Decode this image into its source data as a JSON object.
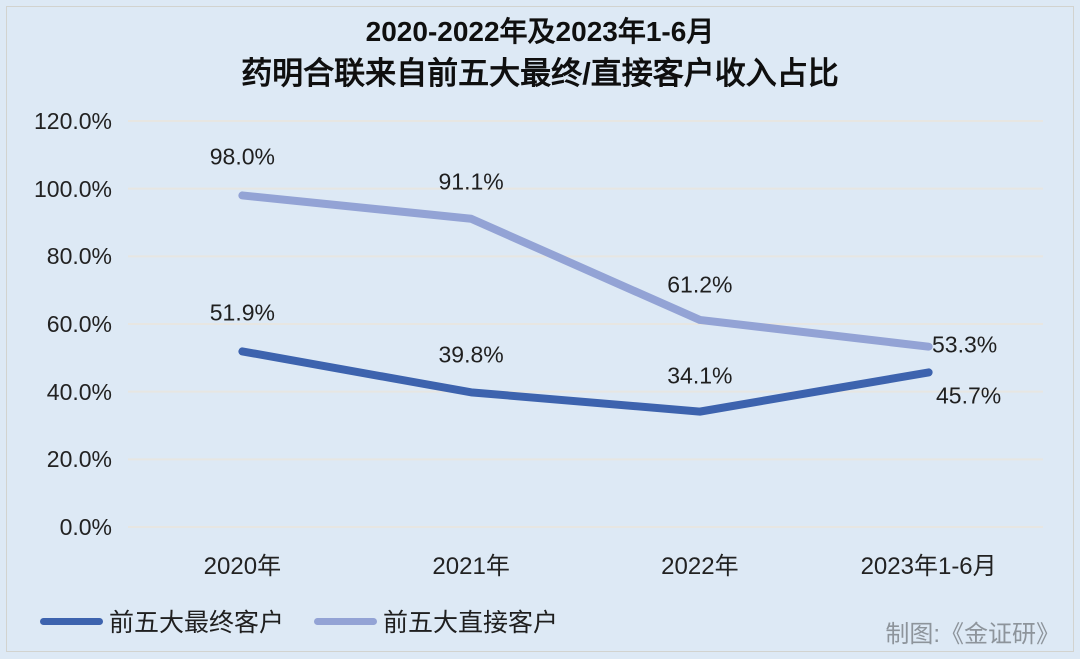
{
  "chart_data": {
    "type": "line",
    "title_line1": "2020-2022年及2023年1-6月",
    "title_line2": "药明合联来自前五大最终/直接客户收入占比",
    "categories": [
      "2020年",
      "2021年",
      "2022年",
      "2023年1-6月"
    ],
    "series": [
      {
        "name": "前五大最终客户",
        "color": "#3d63ae",
        "values": [
          51.9,
          39.8,
          34.1,
          45.7
        ],
        "point_labels": [
          "51.9%",
          "39.8%",
          "34.1%",
          "45.7%"
        ],
        "label_offsets": [
          [
            0,
            -38
          ],
          [
            0,
            -37
          ],
          [
            0,
            -36
          ],
          [
            40,
            24
          ]
        ]
      },
      {
        "name": "前五大直接客户",
        "color": "#93a3d5",
        "values": [
          98.0,
          91.1,
          61.2,
          53.3
        ],
        "point_labels": [
          "98.0%",
          "91.1%",
          "61.2%",
          "53.3%"
        ],
        "label_offsets": [
          [
            0,
            -38
          ],
          [
            0,
            -37
          ],
          [
            0,
            -35
          ],
          [
            36,
            -2
          ]
        ]
      }
    ],
    "y_axis": {
      "min": 0,
      "max": 120,
      "ticks": [
        {
          "value": 120,
          "label": "120.0%"
        },
        {
          "value": 100,
          "label": "100.0%"
        },
        {
          "value": 80,
          "label": "80.0%"
        },
        {
          "value": 60,
          "label": "60.0%"
        },
        {
          "value": 40,
          "label": "40.0%"
        },
        {
          "value": 20,
          "label": "20.0%"
        },
        {
          "value": 0,
          "label": "0.0%"
        }
      ]
    },
    "grid": true,
    "legend_position": "bottom-left",
    "credit": "制图:《金证研》",
    "colors": {
      "background": "#dde9f5",
      "grid": "#e7e6e2",
      "text": "#1f1f1f",
      "credit_text": "#8d949b",
      "frame_border": "#d2d3cf"
    }
  }
}
